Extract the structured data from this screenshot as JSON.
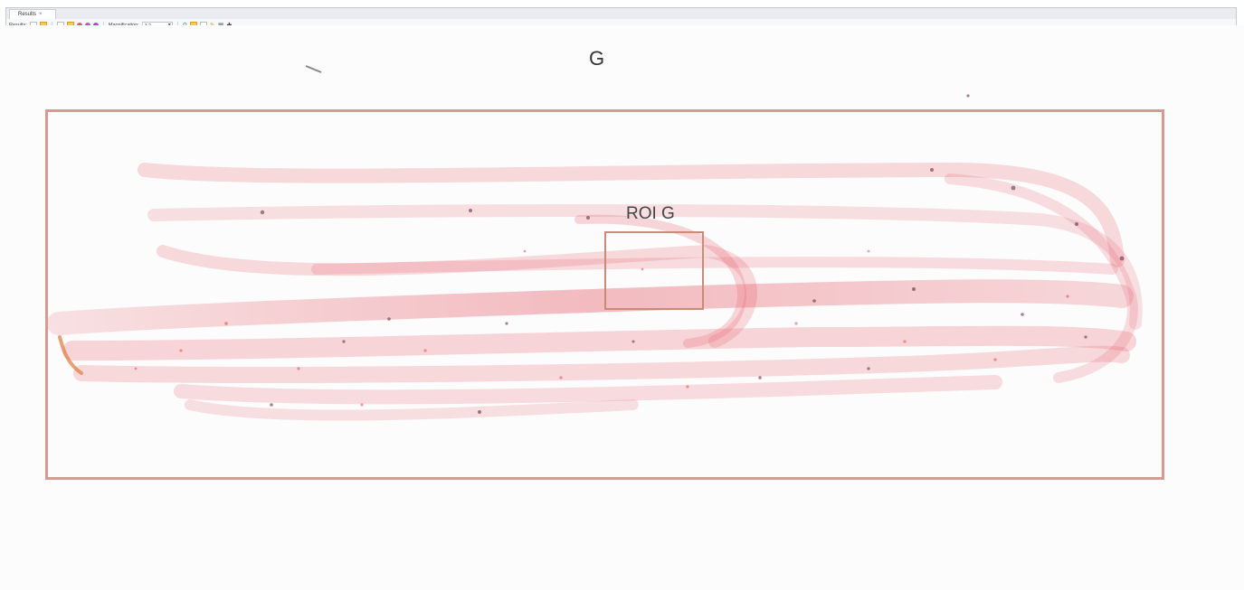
{
  "app": {
    "tab_label": "Results",
    "tab_close": "×"
  },
  "toolbar": {
    "results_label": "Results:",
    "magnification_label": "Magnification:",
    "magnification_value": "3.2"
  },
  "viewer": {
    "slide_label": "G",
    "roi_label": "ROI G"
  },
  "colors": {
    "roi_border": "#d39c92",
    "roi_inner_border": "#c98a78",
    "stain": "#e0414f"
  },
  "icons": [
    "results-icon",
    "select-icon",
    "color-red-icon",
    "color-magenta-icon",
    "zoom-icon",
    "annotate-icon",
    "settings-icon"
  ]
}
